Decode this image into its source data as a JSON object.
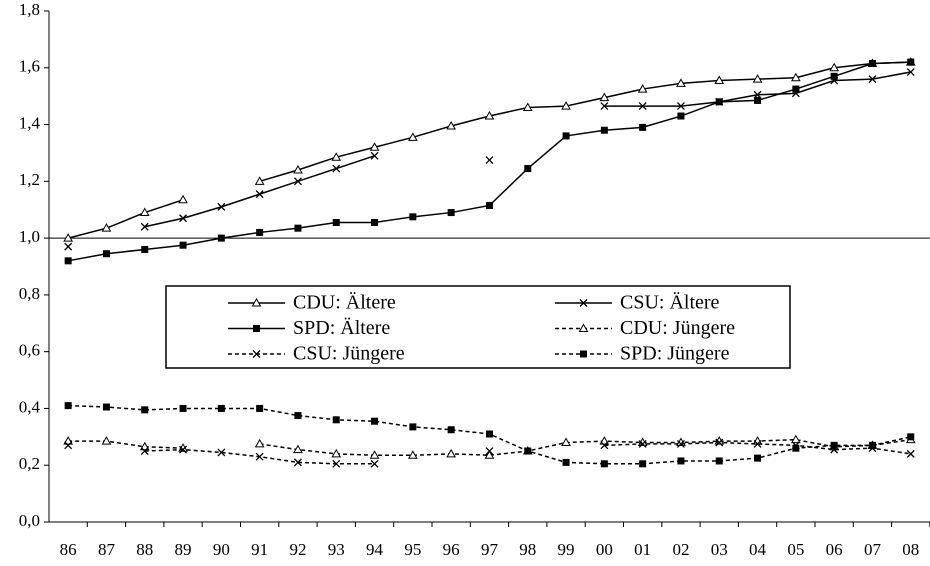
{
  "chart_data": {
    "type": "line",
    "categories": [
      "86",
      "87",
      "88",
      "89",
      "90",
      "91",
      "92",
      "93",
      "94",
      "95",
      "96",
      "97",
      "98",
      "99",
      "00",
      "01",
      "02",
      "03",
      "04",
      "05",
      "06",
      "07",
      "08"
    ],
    "ylim": [
      0,
      1.8
    ],
    "yticks": [
      {
        "value": 0,
        "label": "0,0"
      },
      {
        "value": 0.2,
        "label": "0,2"
      },
      {
        "value": 0.4,
        "label": "0,4"
      },
      {
        "value": 0.6,
        "label": "0,6"
      },
      {
        "value": 0.8,
        "label": "0,8"
      },
      {
        "value": 1,
        "label": "1,0"
      },
      {
        "value": 1.2,
        "label": "1,2"
      },
      {
        "value": 1.4,
        "label": "1,4"
      },
      {
        "value": 1.6,
        "label": "1,6"
      },
      {
        "value": 1.8,
        "label": "1,8"
      }
    ],
    "reference_line": 1,
    "series": [
      {
        "name": "CDU: Ältere",
        "color": "#000000",
        "marker": "triangle",
        "dash": "solid",
        "values": [
          1.0,
          1.035,
          1.09,
          1.135,
          null,
          1.2,
          1.24,
          1.285,
          1.32,
          1.355,
          1.395,
          1.43,
          1.46,
          1.465,
          1.495,
          1.525,
          1.545,
          1.555,
          1.56,
          1.565,
          1.6,
          1.615,
          1.62
        ]
      },
      {
        "name": "CSU: Ältere",
        "color": "#000000",
        "marker": "x",
        "dash": "solid",
        "values": [
          0.97,
          null,
          1.04,
          1.07,
          1.11,
          1.155,
          1.2,
          1.245,
          1.29,
          null,
          null,
          1.275,
          null,
          null,
          1.465,
          1.465,
          1.465,
          1.48,
          1.505,
          1.51,
          1.555,
          1.56,
          1.585
        ]
      },
      {
        "name": "SPD: Ältere",
        "color": "#000000",
        "marker": "square",
        "dash": "solid",
        "values": [
          0.92,
          0.945,
          0.96,
          0.975,
          1.0,
          1.02,
          1.035,
          1.055,
          1.055,
          1.075,
          1.09,
          1.115,
          1.245,
          1.36,
          1.38,
          1.39,
          1.43,
          1.48,
          1.485,
          1.525,
          1.57,
          1.615,
          1.62
        ]
      },
      {
        "name": "CDU: Jüngere",
        "color": "#000000",
        "marker": "triangle",
        "dash": "dashed",
        "values": [
          0.285,
          0.285,
          0.265,
          0.26,
          null,
          0.275,
          0.255,
          0.24,
          0.235,
          0.235,
          0.24,
          0.235,
          0.25,
          0.28,
          0.285,
          0.28,
          0.28,
          0.285,
          0.285,
          0.29,
          0.265,
          0.27,
          0.29
        ]
      },
      {
        "name": "CSU: Jüngere",
        "color": "#000000",
        "marker": "x",
        "dash": "dashed",
        "values": [
          0.27,
          null,
          0.25,
          0.255,
          0.245,
          0.23,
          0.21,
          0.205,
          0.205,
          null,
          null,
          0.25,
          null,
          null,
          0.27,
          0.275,
          0.275,
          0.28,
          0.275,
          0.27,
          0.255,
          0.26,
          0.24
        ]
      },
      {
        "name": "SPD: Jüngere",
        "color": "#000000",
        "marker": "square",
        "dash": "dashed",
        "values": [
          0.41,
          0.405,
          0.395,
          0.4,
          0.4,
          0.4,
          0.375,
          0.36,
          0.355,
          0.335,
          0.325,
          0.31,
          0.25,
          0.21,
          0.205,
          0.205,
          0.215,
          0.215,
          0.225,
          0.26,
          0.27,
          0.27,
          0.3
        ]
      }
    ]
  }
}
